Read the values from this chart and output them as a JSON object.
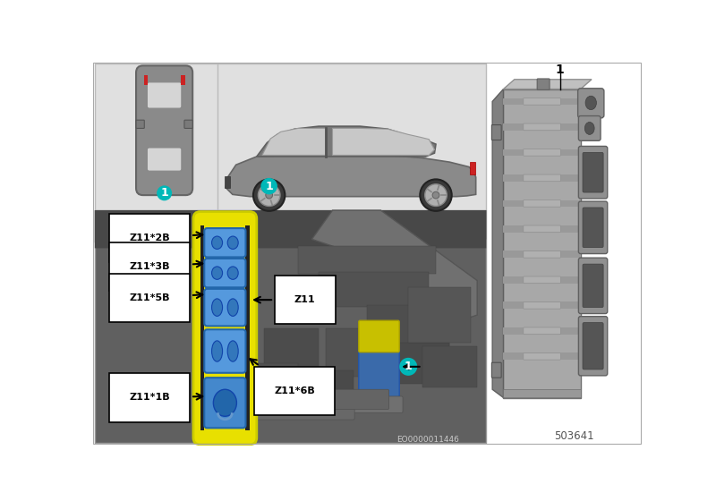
{
  "bg_color": "#ffffff",
  "top_panel_bg": "#e0e0e0",
  "teal_color": "#00b8b8",
  "teal_text": "#ffffff",
  "label_bg": "#ffffff",
  "label_border": "#000000",
  "yellow_module": "#e8e000",
  "blue_connector": "#4a90d0",
  "blue_connector_dark": "#2266aa",
  "arrow_color": "#000000",
  "text_color": "#000000",
  "engine_bg": "#5a5a5a",
  "part_number": "503641",
  "eo_number": "EO0000011446",
  "label_1": "1",
  "module_labels": [
    "Z11*2B",
    "Z11*3B",
    "Z11*5B",
    "Z11*6B",
    "Z11*1B"
  ],
  "z11_label": "Z11",
  "part_gray": "#a8a8a8",
  "part_dark": "#808080",
  "part_light": "#c0c0c0"
}
